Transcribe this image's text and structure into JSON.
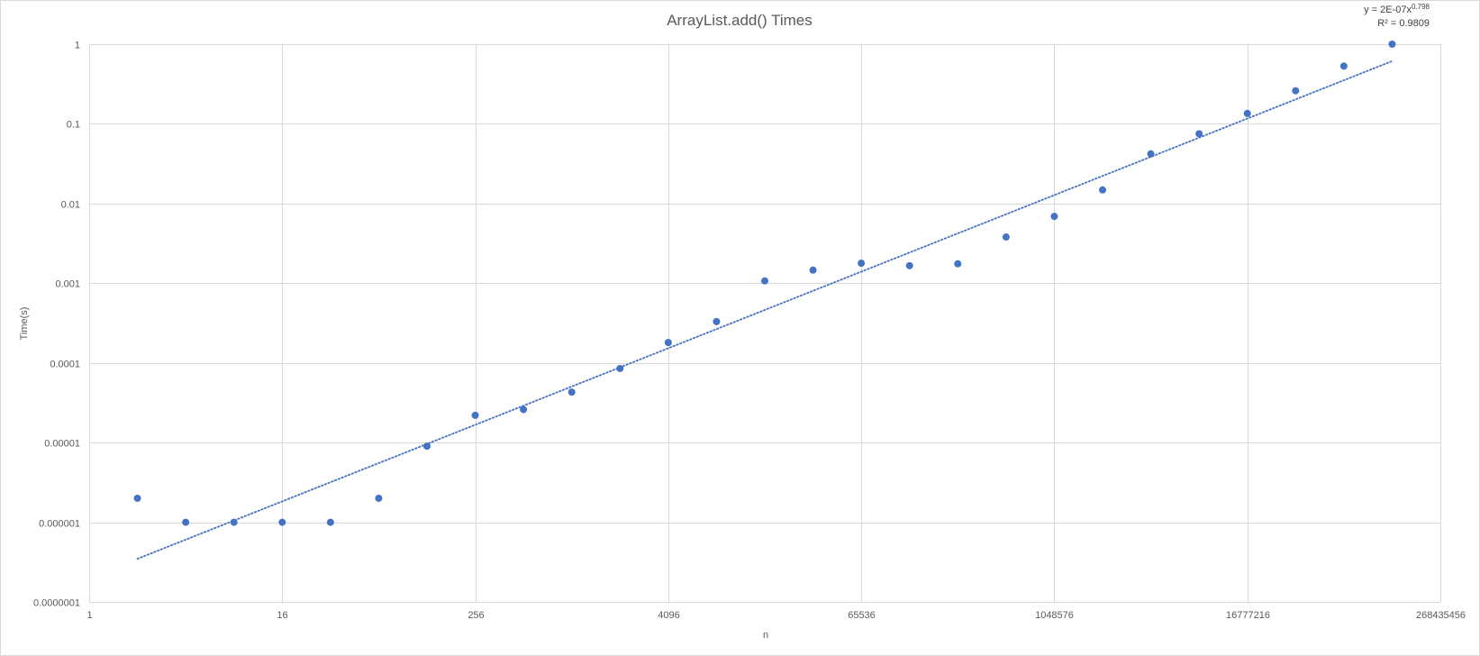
{
  "chart_data": {
    "type": "scatter",
    "title": "ArrayList.add() Times",
    "xlabel": "n",
    "ylabel": "Time(s)",
    "x_scale": "log2",
    "y_scale": "log10",
    "xlim": [
      1,
      268435456
    ],
    "ylim": [
      1e-07,
      1
    ],
    "x_ticks": [
      1,
      16,
      256,
      4096,
      65536,
      1048576,
      16777216,
      268435456
    ],
    "x_tick_labels": [
      "1",
      "16",
      "256",
      "4096",
      "65536",
      "1048576",
      "16777216",
      "268435456"
    ],
    "y_ticks": [
      1e-07,
      1e-06,
      1e-05,
      0.0001,
      0.001,
      0.01,
      0.1,
      1
    ],
    "y_tick_labels": [
      "0.0000001",
      "0.000001",
      "0.00001",
      "0.0001",
      "0.001",
      "0.01",
      "0.1",
      "1"
    ],
    "grid": true,
    "marker_color": "#4472c4",
    "series": [
      {
        "x": [
          2,
          4,
          8,
          16,
          32,
          64,
          128,
          256,
          512,
          1024,
          2048,
          4096,
          8192,
          16384,
          32768,
          65536,
          131072,
          262144,
          524288,
          1048576,
          2097152,
          4194304,
          8388608,
          16777216,
          33554432,
          67108864,
          134217728
        ],
        "y": [
          2e-06,
          1e-06,
          1e-06,
          1e-06,
          1e-06,
          2e-06,
          9e-06,
          2.2e-05,
          2.6e-05,
          4.3e-05,
          8.5e-05,
          0.00018,
          0.00033,
          0.00107,
          0.00146,
          0.00178,
          0.00166,
          0.00175,
          0.0038,
          0.0069,
          0.0148,
          0.042,
          0.075,
          0.135,
          0.26,
          0.53,
          1.0
        ]
      }
    ],
    "trendline": {
      "type": "power",
      "coefficient": 2e-07,
      "exponent": 0.798,
      "color": "#4472c4",
      "style": "dotted",
      "x_range": [
        2,
        134217728
      ],
      "equation_prefix": "y = 2E-07x",
      "equation_exponent": "0.798",
      "r_squared_label": "R² = 0.9809"
    }
  }
}
